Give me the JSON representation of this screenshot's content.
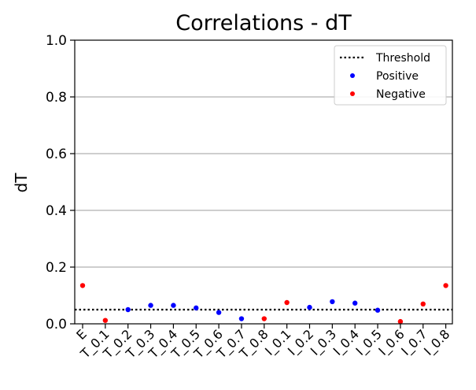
{
  "chart_data": {
    "type": "scatter",
    "title": "Correlations - dT",
    "xlabel": "",
    "ylabel": "dT",
    "ylim": [
      0,
      1.0
    ],
    "yticks": [
      "0.0",
      "0.2",
      "0.4",
      "0.6",
      "0.8",
      "1.0"
    ],
    "grid": "horizontal",
    "legend_position": "top-right",
    "categories": [
      "E",
      "T_0.1",
      "T_0.2",
      "T_0.3",
      "T_0.4",
      "T_0.5",
      "T_0.6",
      "T_0.7",
      "T_0.8",
      "I_0.1",
      "I_0.2",
      "I_0.3",
      "I_0.4",
      "I_0.5",
      "I_0.6",
      "I_0.7",
      "I_0.8"
    ],
    "values": [
      0.135,
      0.012,
      0.05,
      0.065,
      0.065,
      0.056,
      0.04,
      0.018,
      0.018,
      0.075,
      0.058,
      0.078,
      0.073,
      0.048,
      0.008,
      0.07,
      0.135
    ],
    "signs": [
      "Negative",
      "Negative",
      "Positive",
      "Positive",
      "Positive",
      "Positive",
      "Positive",
      "Positive",
      "Negative",
      "Negative",
      "Positive",
      "Positive",
      "Positive",
      "Positive",
      "Negative",
      "Negative",
      "Negative"
    ],
    "threshold": 0.05,
    "legend": [
      {
        "label": "Threshold",
        "kind": "line",
        "color": "#000000"
      },
      {
        "label": "Positive",
        "kind": "point",
        "color": "#0000ff"
      },
      {
        "label": "Negative",
        "kind": "point",
        "color": "#ff0000"
      }
    ],
    "colors": {
      "Positive": "#0000ff",
      "Negative": "#ff0000",
      "grid": "#b0b0b0",
      "threshold": "#000000"
    }
  }
}
